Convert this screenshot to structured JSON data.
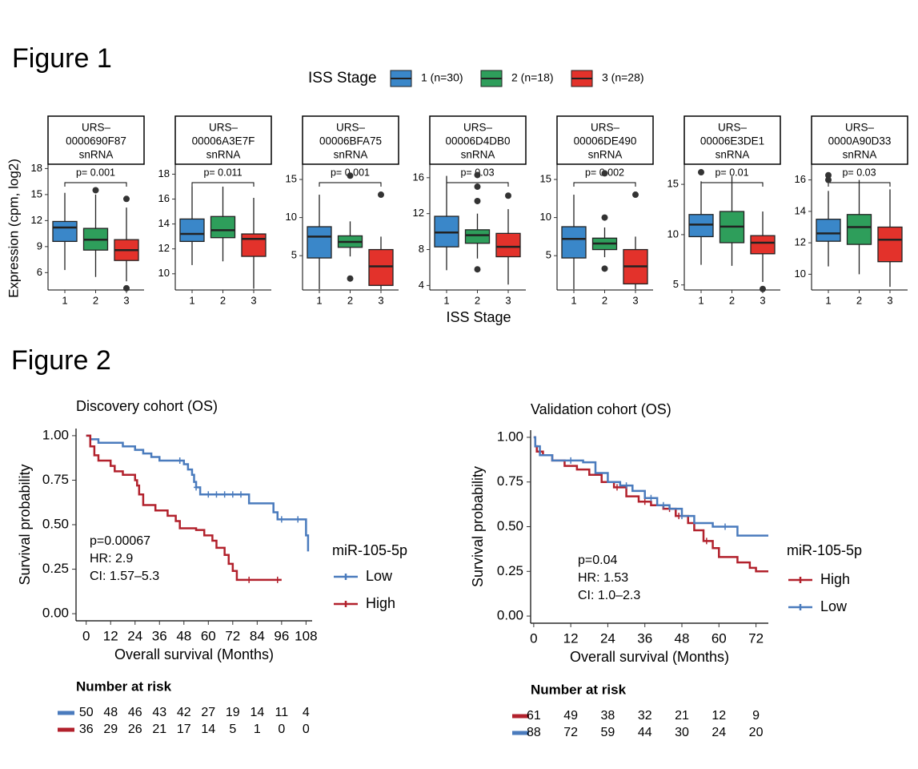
{
  "figure1": {
    "label": "Figure 1",
    "legend_title": "ISS Stage",
    "legend": [
      {
        "name": "1 (n=30)",
        "color": "#3a87c9"
      },
      {
        "name": "2 (n=18)",
        "color": "#2e9e5b"
      },
      {
        "name": "3 (n=28)",
        "color": "#e3322b"
      }
    ],
    "y_label": "Expression (cpm, log2)",
    "x_label": "ISS Stage"
  },
  "figure2": {
    "label": "Figure 2"
  },
  "chart_data": [
    {
      "type": "box",
      "title_lines": [
        "URS–",
        "0000690F87",
        "snRNA"
      ],
      "p_label": "p= 0.001",
      "categories": [
        "1",
        "2",
        "3"
      ],
      "ylim": [
        4,
        18.5
      ],
      "yticks": [
        6,
        9,
        12,
        15,
        18
      ],
      "boxes": [
        {
          "whislo": 6.3,
          "q1": 9.6,
          "median": 11.2,
          "q3": 11.9,
          "whishi": 15.2,
          "outliers": []
        },
        {
          "whislo": 5.5,
          "q1": 8.6,
          "median": 9.8,
          "q3": 11.1,
          "whishi": 15,
          "outliers": [
            15.5
          ]
        },
        {
          "whislo": 5,
          "q1": 7.4,
          "median": 8.6,
          "q3": 9.8,
          "whishi": 13.5,
          "outliers": [
            14.5,
            4.2
          ]
        }
      ]
    },
    {
      "type": "box",
      "title_lines": [
        "URS–",
        "00006A3E7F",
        "snRNA"
      ],
      "p_label": "p= 0.011",
      "categories": [
        "1",
        "2",
        "3"
      ],
      "ylim": [
        8.7,
        18.8
      ],
      "yticks": [
        10,
        12,
        14,
        16,
        18
      ],
      "boxes": [
        {
          "whislo": 10.7,
          "q1": 12.6,
          "median": 13.2,
          "q3": 14.4,
          "whishi": 17,
          "outliers": []
        },
        {
          "whislo": 11,
          "q1": 12.9,
          "median": 13.5,
          "q3": 14.6,
          "whishi": 17,
          "outliers": []
        },
        {
          "whislo": 8.8,
          "q1": 11.4,
          "median": 12.8,
          "q3": 13.2,
          "whishi": 16.1,
          "outliers": []
        }
      ]
    },
    {
      "type": "box",
      "title_lines": [
        "URS–",
        "00006BFA75",
        "snRNA"
      ],
      "p_label": "p= 0.001",
      "categories": [
        "1",
        "2",
        "3"
      ],
      "ylim": [
        0.5,
        17
      ],
      "yticks": [
        5,
        10,
        15
      ],
      "boxes": [
        {
          "whislo": 0.6,
          "q1": 4.7,
          "median": 7.5,
          "q3": 8.8,
          "whishi": 13,
          "outliers": []
        },
        {
          "whislo": 4.9,
          "q1": 6.1,
          "median": 6.8,
          "q3": 7.6,
          "whishi": 9.5,
          "outliers": [
            15.5,
            2
          ]
        },
        {
          "whislo": 0.6,
          "q1": 1.1,
          "median": 3.6,
          "q3": 5.8,
          "whishi": 7.5,
          "outliers": [
            13
          ]
        }
      ]
    },
    {
      "type": "box",
      "title_lines": [
        "URS–",
        "00006D4DB0",
        "snRNA"
      ],
      "p_label": "p= 0.03",
      "categories": [
        "1",
        "2",
        "3"
      ],
      "ylim": [
        3.5,
        17.5
      ],
      "yticks": [
        4,
        8,
        12,
        16
      ],
      "boxes": [
        {
          "whislo": 5.7,
          "q1": 8.3,
          "median": 9.9,
          "q3": 11.7,
          "whishi": 16.2,
          "outliers": []
        },
        {
          "whislo": 7,
          "q1": 8.7,
          "median": 9.6,
          "q3": 10.2,
          "whishi": 12,
          "outliers": [
            16.3,
            15,
            13.4,
            5.8
          ]
        },
        {
          "whislo": 4.1,
          "q1": 7.2,
          "median": 8.3,
          "q3": 9.8,
          "whishi": 12.5,
          "outliers": [
            14
          ]
        }
      ]
    },
    {
      "type": "box",
      "title_lines": [
        "URS–",
        "00006DE490",
        "snRNA"
      ],
      "p_label": "p= 0.002",
      "categories": [
        "1",
        "2",
        "3"
      ],
      "ylim": [
        0.5,
        17
      ],
      "yticks": [
        5,
        10,
        15
      ],
      "boxes": [
        {
          "whislo": 0.6,
          "q1": 4.7,
          "median": 7.2,
          "q3": 8.8,
          "whishi": 13,
          "outliers": []
        },
        {
          "whislo": 4.8,
          "q1": 5.8,
          "median": 6.6,
          "q3": 7.3,
          "whishi": 8.7,
          "outliers": [
            15.8,
            10,
            3.3
          ]
        },
        {
          "whislo": 0.6,
          "q1": 1.3,
          "median": 3.6,
          "q3": 5.8,
          "whishi": 7.5,
          "outliers": [
            13
          ]
        }
      ]
    },
    {
      "type": "box",
      "title_lines": [
        "URS–",
        "00006E3DE1",
        "snRNA"
      ],
      "p_label": "p= 0.01",
      "categories": [
        "1",
        "2",
        "3"
      ],
      "ylim": [
        4.5,
        17
      ],
      "yticks": [
        5,
        10,
        15
      ],
      "boxes": [
        {
          "whislo": 7,
          "q1": 9.8,
          "median": 11,
          "q3": 12,
          "whishi": 15.3,
          "outliers": [
            16.2
          ]
        },
        {
          "whislo": 6.9,
          "q1": 9.2,
          "median": 10.8,
          "q3": 12.3,
          "whishi": 15.8,
          "outliers": []
        },
        {
          "whislo": 5.3,
          "q1": 8.1,
          "median": 9.2,
          "q3": 9.9,
          "whishi": 12.3,
          "outliers": [
            4.6
          ]
        }
      ]
    },
    {
      "type": "box",
      "title_lines": [
        "URS–",
        "0000A90D33",
        "snRNA"
      ],
      "p_label": "p= 0.03",
      "categories": [
        "1",
        "2",
        "3"
      ],
      "ylim": [
        9,
        17
      ],
      "yticks": [
        10,
        12,
        14,
        16
      ],
      "boxes": [
        {
          "whislo": 10.5,
          "q1": 12.1,
          "median": 12.6,
          "q3": 13.5,
          "whishi": 15.3,
          "outliers": [
            16.3,
            16
          ]
        },
        {
          "whislo": 10,
          "q1": 11.9,
          "median": 13,
          "q3": 13.8,
          "whishi": 16,
          "outliers": []
        },
        {
          "whislo": 9.2,
          "q1": 10.8,
          "median": 12.2,
          "q3": 13,
          "whishi": 15.4,
          "outliers": []
        }
      ]
    },
    {
      "type": "km",
      "title": "Discovery cohort (OS)",
      "x_label": "Overall survival (Months)",
      "y_label": "Survival probability",
      "legend_title": "miR-105-5p",
      "annotations": [
        "p=0.00067",
        "HR: 2.9",
        "CI: 1.57–5.3"
      ],
      "risk_title": "Number at risk",
      "xlim": [
        -5,
        111
      ],
      "xticks": [
        0,
        12,
        24,
        36,
        48,
        60,
        72,
        84,
        96,
        108
      ],
      "ylim": [
        -0.04,
        1.04
      ],
      "yticks": [
        {
          "value": 0,
          "label": "0.00"
        },
        {
          "value": 0.25,
          "label": "0.25"
        },
        {
          "value": 0.5,
          "label": "0.50"
        },
        {
          "value": 0.75,
          "label": "0.75"
        },
        {
          "value": 1,
          "label": "1.00"
        }
      ],
      "series": [
        {
          "name": "Low",
          "color": "#4a7bbd",
          "x": [
            0,
            2,
            6,
            18,
            24,
            28,
            32,
            36,
            48,
            50,
            52,
            53,
            54,
            56,
            80,
            92,
            94,
            108,
            109
          ],
          "values": [
            1,
            0.98,
            0.96,
            0.94,
            0.92,
            0.9,
            0.88,
            0.86,
            0.84,
            0.81,
            0.78,
            0.74,
            0.71,
            0.67,
            0.62,
            0.57,
            0.53,
            0.44,
            0.35
          ],
          "censored": [
            46,
            54,
            60,
            64,
            68,
            72,
            76,
            96,
            104
          ],
          "at_risk": [
            50,
            48,
            46,
            43,
            42,
            27,
            19,
            14,
            11,
            4
          ]
        },
        {
          "name": "High",
          "color": "#b2212c",
          "x": [
            0,
            2,
            4,
            6,
            12,
            14,
            18,
            24,
            25,
            26,
            28,
            34,
            40,
            44,
            46,
            54,
            58,
            62,
            64,
            68,
            70,
            72,
            74,
            96
          ],
          "values": [
            1,
            0.94,
            0.89,
            0.86,
            0.83,
            0.8,
            0.78,
            0.75,
            0.72,
            0.67,
            0.61,
            0.58,
            0.55,
            0.52,
            0.48,
            0.47,
            0.44,
            0.41,
            0.37,
            0.33,
            0.28,
            0.24,
            0.19,
            0.19
          ],
          "censored": [
            80,
            94
          ],
          "at_risk": [
            36,
            29,
            26,
            21,
            17,
            14,
            5,
            1,
            0,
            0
          ]
        }
      ]
    },
    {
      "type": "km",
      "title": "Validation cohort (OS)",
      "x_label": "Overall survival (Months)",
      "y_label": "Survival probability",
      "legend_title": "miR-105-5p",
      "annotations": [
        "p=0.04",
        "HR: 1.53",
        "CI: 1.0–2.3"
      ],
      "risk_title": "Number at risk",
      "xlim": [
        -1,
        76
      ],
      "xticks": [
        0,
        12,
        24,
        36,
        48,
        60,
        72
      ],
      "ylim": [
        -0.04,
        1.04
      ],
      "yticks": [
        {
          "value": 0,
          "label": "0.00"
        },
        {
          "value": 0.25,
          "label": "0.25"
        },
        {
          "value": 0.5,
          "label": "0.50"
        },
        {
          "value": 0.75,
          "label": "0.75"
        },
        {
          "value": 1,
          "label": "1.00"
        }
      ],
      "series": [
        {
          "name": "High",
          "color": "#b2212c",
          "x": [
            0,
            0.5,
            1,
            3,
            6,
            10,
            14,
            18,
            22,
            26,
            30,
            34,
            38,
            42,
            46,
            50,
            52,
            55,
            58,
            60,
            66,
            70,
            72,
            76
          ],
          "values": [
            1,
            0.95,
            0.92,
            0.9,
            0.87,
            0.84,
            0.82,
            0.79,
            0.75,
            0.72,
            0.67,
            0.64,
            0.62,
            0.6,
            0.56,
            0.52,
            0.48,
            0.42,
            0.38,
            0.33,
            0.3,
            0.27,
            0.25,
            0.25
          ],
          "censored": [
            27,
            36,
            44,
            47,
            56
          ],
          "at_risk": [
            61,
            49,
            38,
            32,
            21,
            12,
            9
          ]
        },
        {
          "name": "Low",
          "color": "#4a7bbd",
          "x": [
            0,
            0.5,
            2,
            6,
            16,
            20,
            24,
            28,
            32,
            36,
            40,
            44,
            48,
            52,
            58,
            66,
            76
          ],
          "values": [
            1,
            0.95,
            0.9,
            0.87,
            0.86,
            0.8,
            0.75,
            0.73,
            0.7,
            0.66,
            0.62,
            0.6,
            0.56,
            0.52,
            0.5,
            0.45,
            0.45
          ],
          "censored": [
            12,
            30,
            38,
            42,
            48,
            62
          ],
          "at_risk": [
            88,
            72,
            59,
            44,
            30,
            24,
            20
          ]
        }
      ]
    }
  ]
}
